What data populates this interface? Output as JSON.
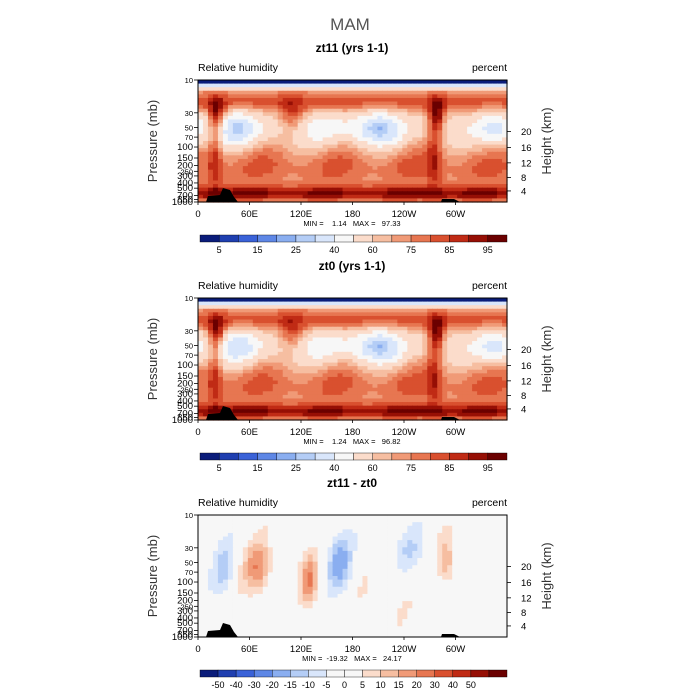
{
  "figure_title": "MAM",
  "colors": {
    "seq": [
      "#0a1c7a",
      "#1f3fb0",
      "#3a62d8",
      "#5e87e6",
      "#8aaef0",
      "#b4cdf6",
      "#d9e6fb",
      "#f7f7f7",
      "#fbdccb",
      "#f6bea1",
      "#f09a77",
      "#e77651",
      "#d9502f",
      "#c02b15",
      "#960f05",
      "#6b0000"
    ],
    "div": [
      "#0a1c7a",
      "#1f3fb0",
      "#3a62d8",
      "#5e87e6",
      "#8aaef0",
      "#b4cdf6",
      "#d9e6fb",
      "#f7f7f7",
      "#f7f7f7",
      "#fbdccb",
      "#f6bea1",
      "#f09a77",
      "#e77651",
      "#d9502f",
      "#c02b15",
      "#960f05",
      "#6b0000"
    ],
    "topography": "#000000"
  },
  "chart_data": [
    {
      "type": "heatmap",
      "title": "zt11 (yrs 1-1)",
      "left_label": "Relative humidity",
      "right_label": "percent",
      "ylabel": "Pressure (mb)",
      "y2label": "Height (km)",
      "x_ticks": [
        "0",
        "60E",
        "120E",
        "180",
        "120W",
        "60W"
      ],
      "x_tick_lon": [
        0,
        60,
        120,
        180,
        240,
        300
      ],
      "xlim": [
        0,
        360
      ],
      "y_ticks": [
        "10",
        "30",
        "50",
        "70",
        "100",
        "150",
        "200",
        "250",
        "300",
        "400",
        "500",
        "700",
        "850",
        "1000"
      ],
      "y_major_ticks": [
        "100",
        "150",
        "200",
        "300",
        "400",
        "500",
        "700",
        "850",
        "1000"
      ],
      "y_tick_p": [
        10,
        30,
        50,
        70,
        100,
        150,
        200,
        250,
        300,
        400,
        500,
        700,
        850,
        1000
      ],
      "ylim": [
        1000,
        10
      ],
      "height_ticks": [
        "4",
        "8",
        "12",
        "16",
        "20"
      ],
      "height_tick_km": [
        4,
        8,
        12,
        16,
        20
      ],
      "stats": "MIN =    1.14   MAX =   97.33",
      "colorbar_labels": [
        "5",
        "15",
        "25",
        "40",
        "60",
        "75",
        "85",
        "95"
      ],
      "colorbar_levels": [
        5,
        10,
        15,
        20,
        25,
        30,
        40,
        50,
        60,
        65,
        70,
        75,
        80,
        85,
        90,
        95
      ],
      "field": "seq"
    },
    {
      "type": "heatmap",
      "title": "zt0 (yrs 1-1)",
      "left_label": "Relative humidity",
      "right_label": "percent",
      "ylabel": "Pressure (mb)",
      "y2label": "Height (km)",
      "x_ticks": [
        "0",
        "60E",
        "120E",
        "180",
        "120W",
        "60W"
      ],
      "x_tick_lon": [
        0,
        60,
        120,
        180,
        240,
        300
      ],
      "xlim": [
        0,
        360
      ],
      "y_ticks": [
        "10",
        "30",
        "50",
        "70",
        "100",
        "150",
        "200",
        "250",
        "300",
        "400",
        "500",
        "700",
        "850",
        "1000"
      ],
      "y_major_ticks": [
        "100",
        "150",
        "200",
        "300",
        "400",
        "500",
        "700",
        "850",
        "1000"
      ],
      "y_tick_p": [
        10,
        30,
        50,
        70,
        100,
        150,
        200,
        250,
        300,
        400,
        500,
        700,
        850,
        1000
      ],
      "ylim": [
        1000,
        10
      ],
      "height_ticks": [
        "4",
        "8",
        "12",
        "16",
        "20"
      ],
      "height_tick_km": [
        4,
        8,
        12,
        16,
        20
      ],
      "stats": "MIN =    1.24   MAX =   96.82",
      "colorbar_labels": [
        "5",
        "15",
        "25",
        "40",
        "60",
        "75",
        "85",
        "95"
      ],
      "colorbar_levels": [
        5,
        10,
        15,
        20,
        25,
        30,
        40,
        50,
        60,
        65,
        70,
        75,
        80,
        85,
        90,
        95
      ],
      "field": "seq"
    },
    {
      "type": "heatmap",
      "title": "zt11 - zt0",
      "left_label": "Relative humidity",
      "right_label": "percent",
      "ylabel": "Pressure (mb)",
      "y2label": "Height (km)",
      "x_ticks": [
        "0",
        "60E",
        "120E",
        "180",
        "120W",
        "60W"
      ],
      "x_tick_lon": [
        0,
        60,
        120,
        180,
        240,
        300
      ],
      "xlim": [
        0,
        360
      ],
      "y_ticks": [
        "10",
        "30",
        "50",
        "70",
        "100",
        "150",
        "200",
        "250",
        "300",
        "400",
        "500",
        "700",
        "850",
        "1000"
      ],
      "y_major_ticks": [
        "100",
        "150",
        "200",
        "300",
        "400",
        "500",
        "700",
        "850",
        "1000"
      ],
      "y_tick_p": [
        10,
        30,
        50,
        70,
        100,
        150,
        200,
        250,
        300,
        400,
        500,
        700,
        850,
        1000
      ],
      "ylim": [
        1000,
        10
      ],
      "height_ticks": [
        "4",
        "8",
        "12",
        "16",
        "20"
      ],
      "height_tick_km": [
        4,
        8,
        12,
        16,
        20
      ],
      "stats": "MIN =  -19.32   MAX =   24.17",
      "colorbar_labels": [
        "-50",
        "-40",
        "-30",
        "-20",
        "-15",
        "-10",
        "-5",
        "0",
        "5",
        "10",
        "15",
        "20",
        "30",
        "40",
        "50"
      ],
      "colorbar_levels": [
        -50,
        -40,
        -30,
        -20,
        -15,
        -10,
        -5,
        0,
        5,
        10,
        15,
        20,
        30,
        40,
        50
      ],
      "field": "div"
    }
  ]
}
